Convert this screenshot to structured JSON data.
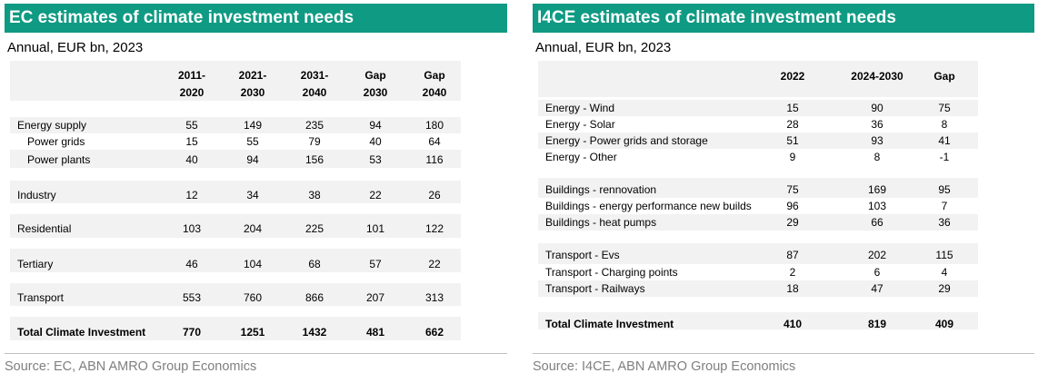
{
  "left": {
    "title": "EC estimates of climate investment needs",
    "subtitle": "Annual, EUR bn, 2023",
    "columns": [
      {
        "l1": "2011-",
        "l2": "2020"
      },
      {
        "l1": "2021-",
        "l2": "2030"
      },
      {
        "l1": "2031-",
        "l2": "2040"
      },
      {
        "l1": "Gap",
        "l2": "2030"
      },
      {
        "l1": "Gap",
        "l2": "2040"
      }
    ],
    "rows": [
      {
        "label": "Energy supply",
        "values": [
          "55",
          "149",
          "235",
          "94",
          "180"
        ]
      },
      {
        "label": "Power grids",
        "values": [
          "15",
          "55",
          "79",
          "40",
          "64"
        ]
      },
      {
        "label": "Power plants",
        "values": [
          "40",
          "94",
          "156",
          "53",
          "116"
        ]
      },
      {
        "label": "Industry",
        "values": [
          "12",
          "34",
          "38",
          "22",
          "26"
        ]
      },
      {
        "label": "Residential",
        "values": [
          "103",
          "204",
          "225",
          "101",
          "122"
        ]
      },
      {
        "label": "Tertiary",
        "values": [
          "46",
          "104",
          "68",
          "57",
          "22"
        ]
      },
      {
        "label": "Transport",
        "values": [
          "553",
          "760",
          "866",
          "207",
          "313"
        ]
      },
      {
        "label": "Total Climate Investment",
        "values": [
          "770",
          "1251",
          "1432",
          "481",
          "662"
        ]
      }
    ],
    "source": "Source: EC, ABN AMRO Group Economics"
  },
  "right": {
    "title": "I4CE estimates of climate investment needs",
    "subtitle": "Annual, EUR bn, 2023",
    "columns": [
      "2022",
      "2024-2030",
      "Gap"
    ],
    "rows": [
      {
        "label": "Energy - Wind",
        "values": [
          "15",
          "90",
          "75"
        ]
      },
      {
        "label": "Energy - Solar",
        "values": [
          "28",
          "36",
          "8"
        ]
      },
      {
        "label": "Energy  - Power grids and storage",
        "values": [
          "51",
          "93",
          "41"
        ]
      },
      {
        "label": "Energy  - Other",
        "values": [
          "9",
          "8",
          "-1"
        ]
      },
      {
        "label": "Buildings - rennovation",
        "values": [
          "75",
          "169",
          "95"
        ]
      },
      {
        "label": "Buildings - energy performance new builds",
        "values": [
          "96",
          "103",
          "7"
        ]
      },
      {
        "label": "Buildings - heat pumps",
        "values": [
          "29",
          "66",
          "36"
        ]
      },
      {
        "label": "Transport - Evs",
        "values": [
          "87",
          "202",
          "115"
        ]
      },
      {
        "label": "Transport - Charging points",
        "values": [
          "2",
          "6",
          "4"
        ]
      },
      {
        "label": "Transport - Railways",
        "values": [
          "18",
          "47",
          "29"
        ]
      },
      {
        "label": "Total Climate Investment",
        "values": [
          "410",
          "819",
          "409"
        ]
      }
    ],
    "source": "Source: I4CE, ABN AMRO Group Economics"
  },
  "colors": {
    "header": "#0f9a83",
    "table_bg": "#f2f2f2",
    "source_text": "#7f7f7f"
  }
}
